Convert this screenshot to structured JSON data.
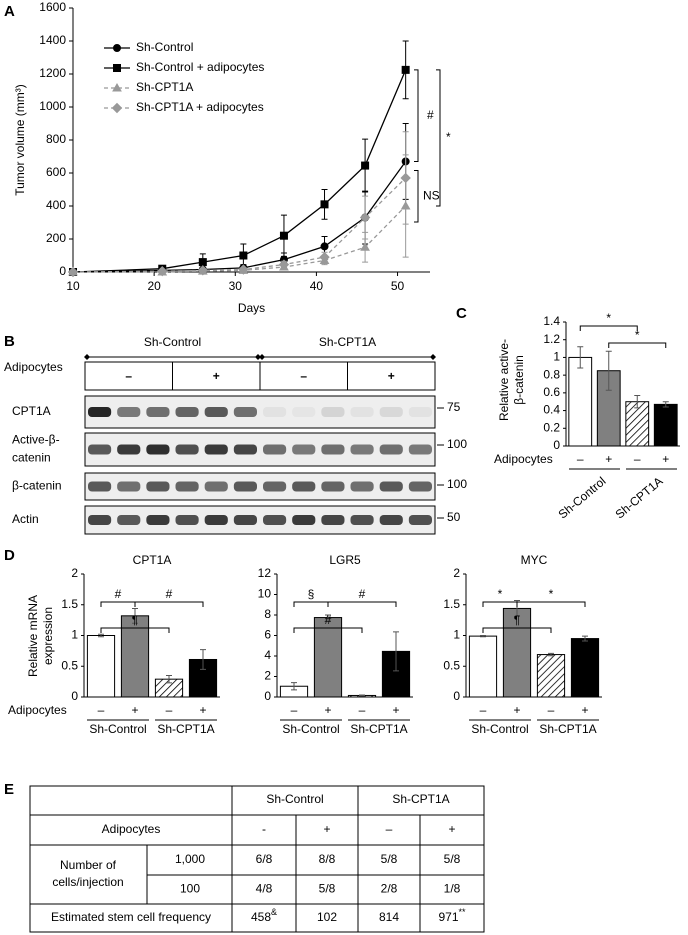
{
  "panel_labels": [
    "A",
    "B",
    "C",
    "D",
    "E"
  ],
  "chart_data": [
    {
      "type": "line",
      "xlabel": "Days",
      "ylabel": "Tumor volume (mm³)",
      "x": [
        10,
        21,
        26,
        31,
        36,
        41,
        46,
        51
      ],
      "xlim": [
        10,
        54
      ],
      "xticks": [
        10,
        20,
        30,
        40,
        50
      ],
      "ylim": [
        0,
        1600
      ],
      "yticks": [
        0,
        200,
        400,
        600,
        800,
        1000,
        1200,
        1400,
        1600
      ],
      "legend": "upper left",
      "series": [
        {
          "name": "Sh-Control",
          "color": "#000000",
          "marker": "circle",
          "dashed": false,
          "values": [
            0,
            10,
            15,
            25,
            75,
            155,
            330,
            670
          ],
          "errors": [
            0,
            5,
            10,
            20,
            40,
            60,
            160,
            230
          ]
        },
        {
          "name": "Sh-Control + adipocytes",
          "color": "#000000",
          "marker": "square",
          "dashed": false,
          "values": [
            0,
            20,
            60,
            100,
            220,
            410,
            645,
            1225
          ],
          "errors": [
            0,
            10,
            50,
            70,
            125,
            90,
            160,
            175
          ]
        },
        {
          "name": "Sh-CPT1A",
          "color": "#999999",
          "marker": "triangle",
          "dashed": true,
          "values": [
            0,
            0,
            5,
            10,
            30,
            70,
            150,
            400
          ],
          "errors": [
            0,
            0,
            5,
            10,
            15,
            25,
            90,
            310
          ]
        },
        {
          "name": "Sh-CPT1A + adipocytes",
          "color": "#999999",
          "marker": "diamond",
          "dashed": true,
          "values": [
            0,
            5,
            10,
            15,
            45,
            90,
            330,
            570
          ],
          "errors": [
            0,
            5,
            5,
            10,
            20,
            30,
            130,
            280
          ]
        }
      ],
      "annotations": [
        "#",
        "*",
        "NS"
      ]
    },
    {
      "type": "bar",
      "ylabel": [
        "Relative active-",
        "β-catenin"
      ],
      "row_label": "Adipocytes",
      "categories": [
        "–",
        "+",
        "–",
        "+"
      ],
      "groups": [
        "Sh-Control",
        "Sh-CPT1A"
      ],
      "values": [
        1.0,
        0.85,
        0.5,
        0.47
      ],
      "errors": [
        0.12,
        0.22,
        0.07,
        0.03
      ],
      "colors": [
        "#ffffff",
        "#808080",
        "#ffffff",
        "#000000"
      ],
      "hatch": [
        false,
        false,
        true,
        false
      ],
      "ylim": [
        0,
        1.4
      ],
      "yticks": [
        0,
        0.2,
        0.4,
        0.6,
        0.8,
        1,
        1.2,
        1.4
      ],
      "annotations": [
        "*",
        "*"
      ]
    },
    {
      "type": "bar",
      "title": "CPT1A",
      "ylabel": [
        "Relative mRNA",
        "expression"
      ],
      "row_label": "Adipocytes",
      "categories": [
        "–",
        "+",
        "–",
        "+"
      ],
      "groups": [
        "Sh-Control",
        "Sh-CPT1A"
      ],
      "values": [
        1.0,
        1.32,
        0.29,
        0.61
      ],
      "errors": [
        0.02,
        0.12,
        0.06,
        0.16
      ],
      "colors": [
        "#ffffff",
        "#808080",
        "#ffffff",
        "#000000"
      ],
      "hatch": [
        false,
        false,
        true,
        false
      ],
      "ylim": [
        0,
        2
      ],
      "yticks": [
        0,
        0.5,
        1,
        1.5,
        2
      ],
      "annotations": [
        "#",
        "#",
        "¶"
      ]
    },
    {
      "type": "bar",
      "title": "LGR5",
      "categories": [
        "–",
        "+",
        "–",
        "+"
      ],
      "groups": [
        "Sh-Control",
        "Sh-CPT1A"
      ],
      "values": [
        1.05,
        7.75,
        0.15,
        4.45
      ],
      "errors": [
        0.35,
        0.25,
        0.05,
        1.9
      ],
      "colors": [
        "#ffffff",
        "#808080",
        "#ffffff",
        "#000000"
      ],
      "hatch": [
        false,
        false,
        true,
        false
      ],
      "ylim": [
        0,
        12
      ],
      "yticks": [
        0,
        2,
        4,
        6,
        8,
        10,
        12
      ],
      "annotations": [
        "§",
        "#",
        "#"
      ]
    },
    {
      "type": "bar",
      "title": "MYC",
      "categories": [
        "–",
        "+",
        "–",
        "+"
      ],
      "groups": [
        "Sh-Control",
        "Sh-CPT1A"
      ],
      "values": [
        0.99,
        1.44,
        0.69,
        0.95
      ],
      "errors": [
        0.01,
        0.13,
        0.02,
        0.04
      ],
      "colors": [
        "#ffffff",
        "#808080",
        "#ffffff",
        "#000000"
      ],
      "hatch": [
        false,
        false,
        true,
        false
      ],
      "ylim": [
        0,
        2
      ],
      "yticks": [
        0,
        0.5,
        1,
        1.5,
        2
      ],
      "annotations": [
        "*",
        "*",
        "¶"
      ]
    }
  ],
  "blot": {
    "groups": [
      "Sh-Control",
      "Sh-CPT1A"
    ],
    "row_label": "Adipocytes",
    "conditions": [
      "–",
      "+",
      "–",
      "+"
    ],
    "rows": [
      {
        "name": [
          "CPT1A"
        ],
        "marker": "75"
      },
      {
        "name": [
          "Active-β-",
          "catenin"
        ],
        "marker": "100"
      },
      {
        "name": [
          "β-catenin"
        ],
        "marker": "100"
      },
      {
        "name": [
          "Actin"
        ],
        "marker": "50"
      }
    ]
  },
  "table": {
    "groups": [
      "Sh-Control",
      "Sh-CPT1A"
    ],
    "adipocytes": {
      "label": "Adipocytes",
      "values": [
        "-",
        "+",
        "–",
        "+"
      ]
    },
    "cells": {
      "label": [
        "Number of",
        "cells/injection"
      ],
      "rows": [
        {
          "dose": "1,000",
          "values": [
            "6/8",
            "8/8",
            "5/8",
            "5/8"
          ]
        },
        {
          "dose": "100",
          "values": [
            "4/8",
            "5/8",
            "2/8",
            "1/8"
          ]
        }
      ]
    },
    "frequency": {
      "label": "Estimated stem cell frequency",
      "values": [
        {
          "text": "458",
          "note": "&"
        },
        {
          "text": "102"
        },
        {
          "text": "814"
        },
        {
          "text": "971",
          "note": "**"
        }
      ]
    }
  }
}
